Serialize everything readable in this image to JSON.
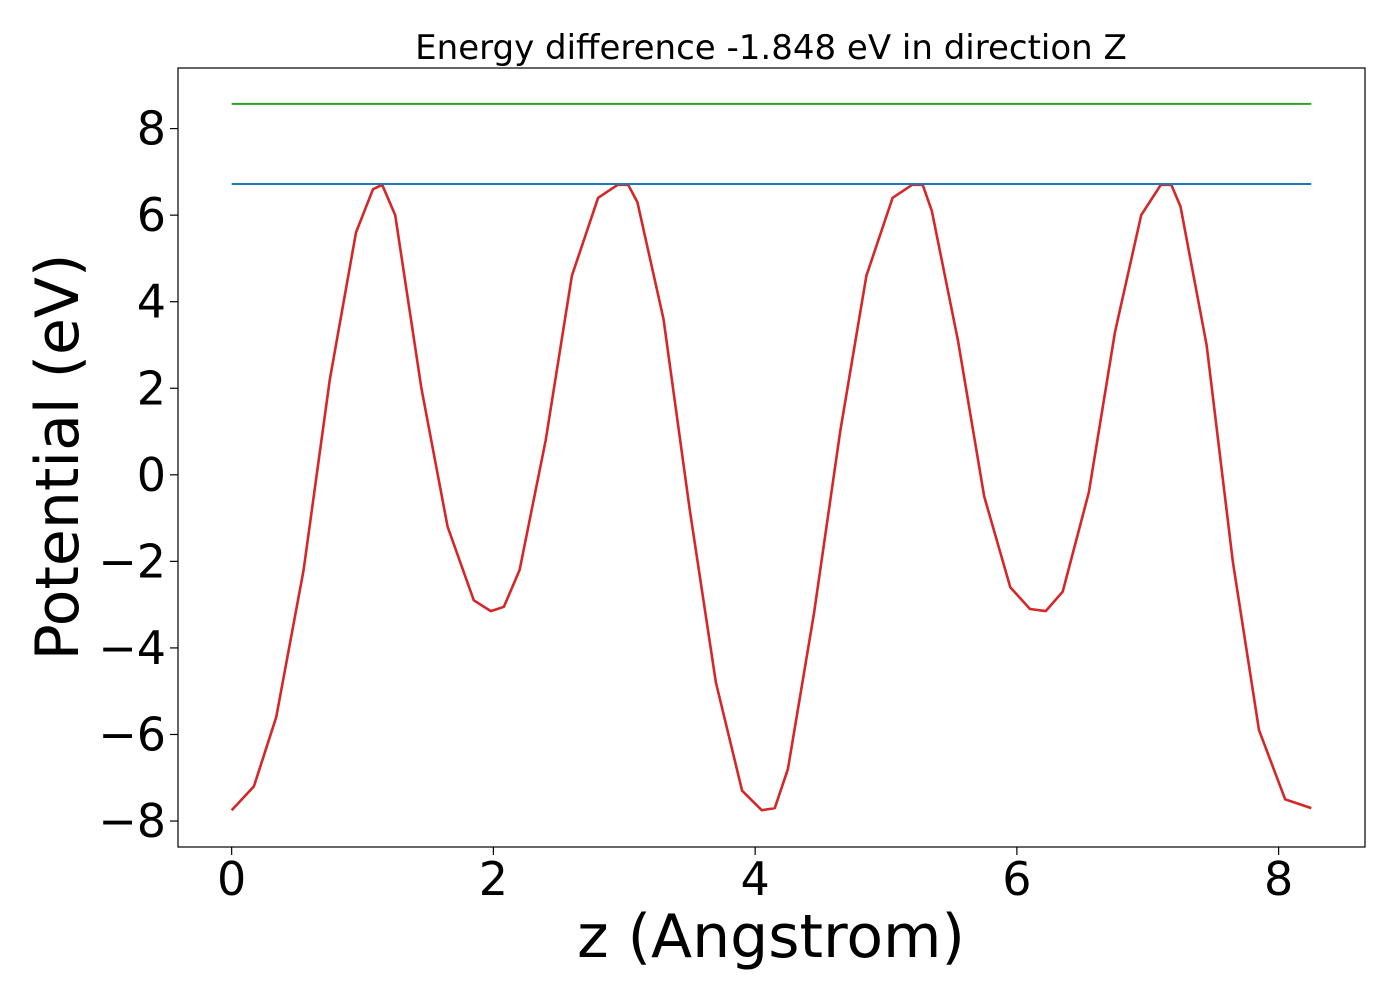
{
  "chart_data": {
    "type": "line",
    "title": "Energy difference -1.848 eV in direction Z",
    "xlabel": "z (Angstrom)",
    "ylabel": "Potential (eV)",
    "xlim": [
      -0.41,
      8.66
    ],
    "ylim": [
      -8.6,
      9.4
    ],
    "xticks": [
      0,
      2,
      4,
      6,
      8
    ],
    "xtick_labels": [
      "0",
      "2",
      "4",
      "6",
      "8"
    ],
    "yticks": [
      -8,
      -6,
      -4,
      -2,
      0,
      2,
      4,
      6,
      8
    ],
    "ytick_labels": [
      "−8",
      "−6",
      "−4",
      "−2",
      "0",
      "2",
      "4",
      "6",
      "8"
    ],
    "grid": false,
    "legend": "none",
    "series": [
      {
        "color": "#d62728",
        "x": [
          0.0,
          0.17,
          0.34,
          0.55,
          0.75,
          0.95,
          1.08,
          1.15,
          1.25,
          1.45,
          1.65,
          1.85,
          1.98,
          2.08,
          2.2,
          2.4,
          2.6,
          2.8,
          2.95,
          3.03,
          3.1,
          3.3,
          3.5,
          3.7,
          3.9,
          4.05,
          4.15,
          4.25,
          4.45,
          4.65,
          4.85,
          5.05,
          5.2,
          5.28,
          5.35,
          5.55,
          5.75,
          5.95,
          6.1,
          6.22,
          6.35,
          6.55,
          6.75,
          6.95,
          7.1,
          7.18,
          7.25,
          7.45,
          7.65,
          7.85,
          8.05,
          8.25
        ],
        "values": [
          -7.75,
          -7.2,
          -5.6,
          -2.2,
          2.2,
          5.6,
          6.6,
          6.7,
          6.0,
          2.0,
          -1.2,
          -2.9,
          -3.15,
          -3.05,
          -2.2,
          0.8,
          4.6,
          6.4,
          6.7,
          6.7,
          6.3,
          3.6,
          -0.8,
          -4.8,
          -7.3,
          -7.75,
          -7.7,
          -6.8,
          -3.2,
          1.0,
          4.6,
          6.4,
          6.7,
          6.7,
          6.1,
          3.1,
          -0.5,
          -2.6,
          -3.1,
          -3.15,
          -2.7,
          -0.4,
          3.3,
          6.0,
          6.7,
          6.7,
          6.2,
          3.0,
          -2.0,
          -5.9,
          -7.5,
          -7.7
        ]
      },
      {
        "color": "#1f77b4",
        "x": [
          0.0,
          8.25
        ],
        "values": [
          6.72,
          6.72
        ]
      },
      {
        "color": "#2ca02c",
        "x": [
          0.0,
          8.25
        ],
        "values": [
          8.57,
          8.57
        ]
      }
    ]
  }
}
